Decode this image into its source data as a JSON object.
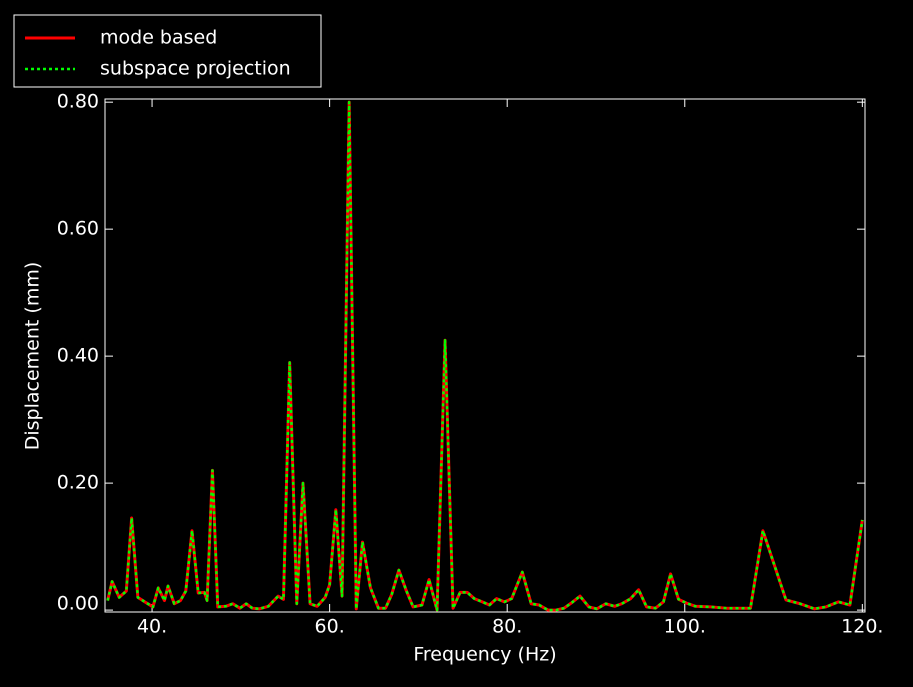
{
  "chart_data": {
    "type": "line",
    "xlabel": "Frequency (Hz)",
    "ylabel": "Displacement (mm)",
    "x": [
      35,
      35.5,
      36.3,
      37.1,
      37.7,
      38.4,
      39.3,
      40.1,
      40.7,
      41.4,
      41.8,
      42.5,
      43.2,
      43.8,
      44.5,
      45.2,
      45.9,
      46.2,
      46.8,
      47.4,
      48.3,
      49.1,
      49.9,
      50.6,
      51.3,
      52.1,
      53.1,
      54.2,
      54.8,
      55.5,
      56.3,
      57.0,
      57.8,
      58.6,
      59.5,
      60.0,
      60.7,
      61.4,
      62.2,
      63.0,
      63.7,
      64.6,
      65.5,
      66.3,
      67.0,
      67.8,
      68.6,
      69.4,
      70.4,
      71.2,
      72.1,
      73.0,
      73.9,
      74.7,
      75.5,
      76.3,
      77.2,
      78.0,
      78.8,
      79.7,
      80.5,
      81.7,
      82.7,
      83.6,
      84.6,
      85.5,
      86.4,
      87.3,
      88.2,
      89.2,
      90.1,
      91.1,
      92.1,
      92.9,
      93.9,
      94.8,
      95.7,
      96.7,
      97.6,
      98.4,
      99.3,
      100.2,
      101.2,
      102.9,
      104.7,
      106.5,
      107.4,
      108.8,
      111.4,
      113.0,
      114.6,
      115.9,
      117.3,
      118.6,
      120.0
    ],
    "series": [
      {
        "name": "mode based",
        "color": "#ff0000",
        "style": "solid",
        "values": [
          0.015,
          0.045,
          0.02,
          0.03,
          0.145,
          0.02,
          0.012,
          0.005,
          0.035,
          0.015,
          0.038,
          0.01,
          0.015,
          0.03,
          0.125,
          0.027,
          0.028,
          0.015,
          0.22,
          0.005,
          0.006,
          0.01,
          0.003,
          0.01,
          0.003,
          0.002,
          0.006,
          0.022,
          0.017,
          0.39,
          0.01,
          0.2,
          0.01,
          0.006,
          0.02,
          0.04,
          0.158,
          0.022,
          0.8,
          0.002,
          0.107,
          0.035,
          0.003,
          0.003,
          0.025,
          0.063,
          0.032,
          0.005,
          0.008,
          0.048,
          0.0,
          0.425,
          0.003,
          0.028,
          0.028,
          0.018,
          0.013,
          0.008,
          0.018,
          0.013,
          0.018,
          0.06,
          0.01,
          0.008,
          0.0,
          0.0,
          0.003,
          0.012,
          0.022,
          0.005,
          0.002,
          0.01,
          0.006,
          0.01,
          0.018,
          0.032,
          0.005,
          0.003,
          0.013,
          0.057,
          0.017,
          0.011,
          0.006,
          0.005,
          0.003,
          0.003,
          0.003,
          0.125,
          0.016,
          0.01,
          0.002,
          0.005,
          0.013,
          0.008,
          0.142
        ]
      },
      {
        "name": "subspace projection",
        "color": "#00ff00",
        "style": "dotted",
        "values": [
          0.015,
          0.045,
          0.02,
          0.03,
          0.145,
          0.02,
          0.012,
          0.005,
          0.035,
          0.015,
          0.038,
          0.01,
          0.015,
          0.03,
          0.125,
          0.027,
          0.028,
          0.015,
          0.22,
          0.005,
          0.006,
          0.01,
          0.003,
          0.01,
          0.003,
          0.002,
          0.006,
          0.022,
          0.017,
          0.39,
          0.01,
          0.2,
          0.01,
          0.006,
          0.02,
          0.04,
          0.158,
          0.022,
          0.8,
          0.002,
          0.107,
          0.035,
          0.003,
          0.003,
          0.025,
          0.063,
          0.032,
          0.005,
          0.008,
          0.048,
          0.0,
          0.425,
          0.003,
          0.028,
          0.028,
          0.018,
          0.013,
          0.008,
          0.018,
          0.013,
          0.018,
          0.06,
          0.01,
          0.008,
          0.0,
          0.0,
          0.003,
          0.012,
          0.022,
          0.005,
          0.002,
          0.01,
          0.006,
          0.01,
          0.018,
          0.032,
          0.005,
          0.003,
          0.013,
          0.057,
          0.017,
          0.011,
          0.006,
          0.005,
          0.003,
          0.003,
          0.003,
          0.125,
          0.016,
          0.01,
          0.002,
          0.005,
          0.013,
          0.008,
          0.142
        ]
      }
    ],
    "xlim": [
      34.7,
      120.3
    ],
    "xticks": [
      {
        "value": 40,
        "label": "40."
      },
      {
        "value": 60,
        "label": "60."
      },
      {
        "value": 80,
        "label": "80."
      },
      {
        "value": 100,
        "label": "100."
      },
      {
        "value": 120,
        "label": "120."
      }
    ],
    "ylim": [
      -0.003,
      0.805
    ],
    "yticks": [
      {
        "value": 0,
        "label": "0.00"
      },
      {
        "value": 0.2,
        "label": "0.20"
      },
      {
        "value": 0.4,
        "label": "0.40"
      },
      {
        "value": 0.6,
        "label": "0.60"
      },
      {
        "value": 0.8,
        "label": "0.80"
      }
    ],
    "legend": "upper-left"
  }
}
